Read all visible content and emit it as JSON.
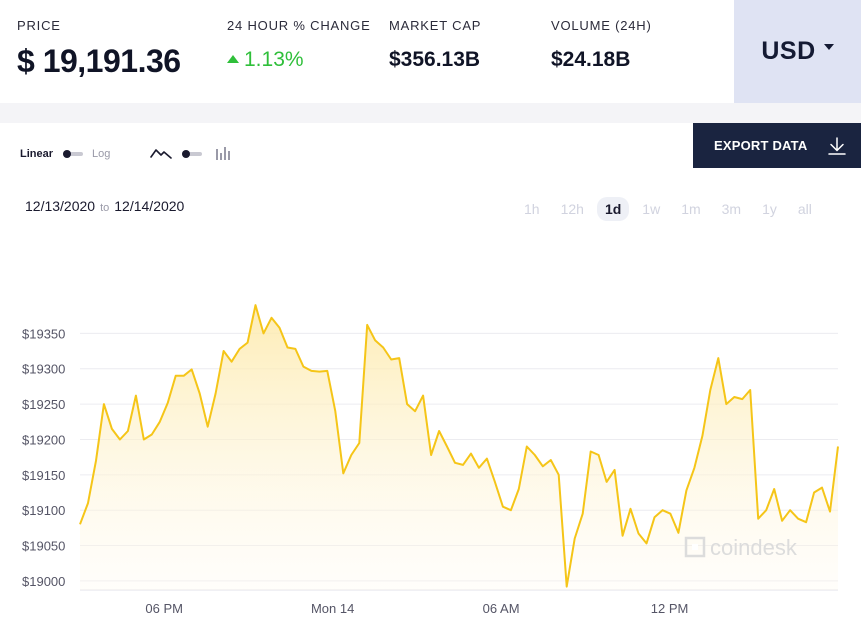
{
  "stats": {
    "price": {
      "label": "PRICE",
      "value": "$ 19,191.36"
    },
    "change": {
      "label": "24 HOUR % CHANGE",
      "value": "1.13%"
    },
    "market_cap": {
      "label": "MARKET CAP",
      "value": "$356.13B"
    },
    "volume": {
      "label": "VOLUME (24H)",
      "value": "$24.18B"
    }
  },
  "currency": {
    "label": "USD"
  },
  "colors": {
    "accent_green": "#2fbf3a",
    "line": "#f5c518",
    "button_dark": "#1a2440",
    "currency_bg": "#dfe3f3"
  },
  "scale_toggle": {
    "linear_label": "Linear",
    "log_label": "Log",
    "selected": "Linear"
  },
  "chart_type_toggle": {
    "selected": "line",
    "icons": [
      "line-chart-icon",
      "bar-chart-icon"
    ]
  },
  "export": {
    "label": "EXPORT DATA",
    "icon": "download-icon"
  },
  "date_range": {
    "from": "12/13/2020",
    "to_label": "to",
    "to": "12/14/2020"
  },
  "ranges": [
    {
      "label": "1h",
      "active": false
    },
    {
      "label": "12h",
      "active": false
    },
    {
      "label": "1d",
      "active": true
    },
    {
      "label": "1w",
      "active": false
    },
    {
      "label": "1m",
      "active": false
    },
    {
      "label": "3m",
      "active": false
    },
    {
      "label": "1y",
      "active": false
    },
    {
      "label": "all",
      "active": false
    }
  ],
  "watermark": {
    "text": "coindesk"
  },
  "chart_data": {
    "type": "area",
    "title": "",
    "xlabel": "",
    "ylabel": "",
    "grid": true,
    "ylim": [
      18990,
      19400
    ],
    "xlim": [
      0,
      108
    ],
    "y_ticks": [
      {
        "value": 19000,
        "label": "$19000"
      },
      {
        "value": 19050,
        "label": "$19050"
      },
      {
        "value": 19100,
        "label": "$19100"
      },
      {
        "value": 19150,
        "label": "$19150"
      },
      {
        "value": 19200,
        "label": "$19200"
      },
      {
        "value": 19250,
        "label": "$19250"
      },
      {
        "value": 19300,
        "label": "$19300"
      },
      {
        "value": 19350,
        "label": "$19350"
      }
    ],
    "x_ticks": [
      {
        "x": 12,
        "label": "06 PM"
      },
      {
        "x": 36,
        "label": "Mon 14"
      },
      {
        "x": 60,
        "label": "06 AM"
      },
      {
        "x": 84,
        "label": "12 PM"
      }
    ],
    "series": [
      {
        "values": [
          19080,
          19110,
          19170,
          19250,
          19215,
          19200,
          19212,
          19262,
          19200,
          19207,
          19225,
          19252,
          19290,
          19290,
          19299,
          19265,
          19218,
          19265,
          19325,
          19310,
          19328,
          19337,
          19390,
          19350,
          19372,
          19358,
          19330,
          19328,
          19303,
          19297,
          19296,
          19297,
          19240,
          19152,
          19178,
          19195,
          19362,
          19340,
          19330,
          19313,
          19315,
          19250,
          19240,
          19262,
          19178,
          19212,
          19190,
          19167,
          19164,
          19180,
          19160,
          19173,
          19140,
          19105,
          19100,
          19130,
          19190,
          19178,
          19162,
          19171,
          19150,
          18992,
          19060,
          19095,
          19183,
          19178,
          19140,
          19157,
          19064,
          19102,
          19067,
          19053,
          19090,
          19100,
          19095,
          19068,
          19128,
          19160,
          19205,
          19270,
          19315,
          19250,
          19260,
          19257,
          19270,
          19088,
          19100,
          19130,
          19085,
          19100,
          19088,
          19083,
          19125,
          19132,
          19098,
          19190
        ]
      }
    ]
  }
}
